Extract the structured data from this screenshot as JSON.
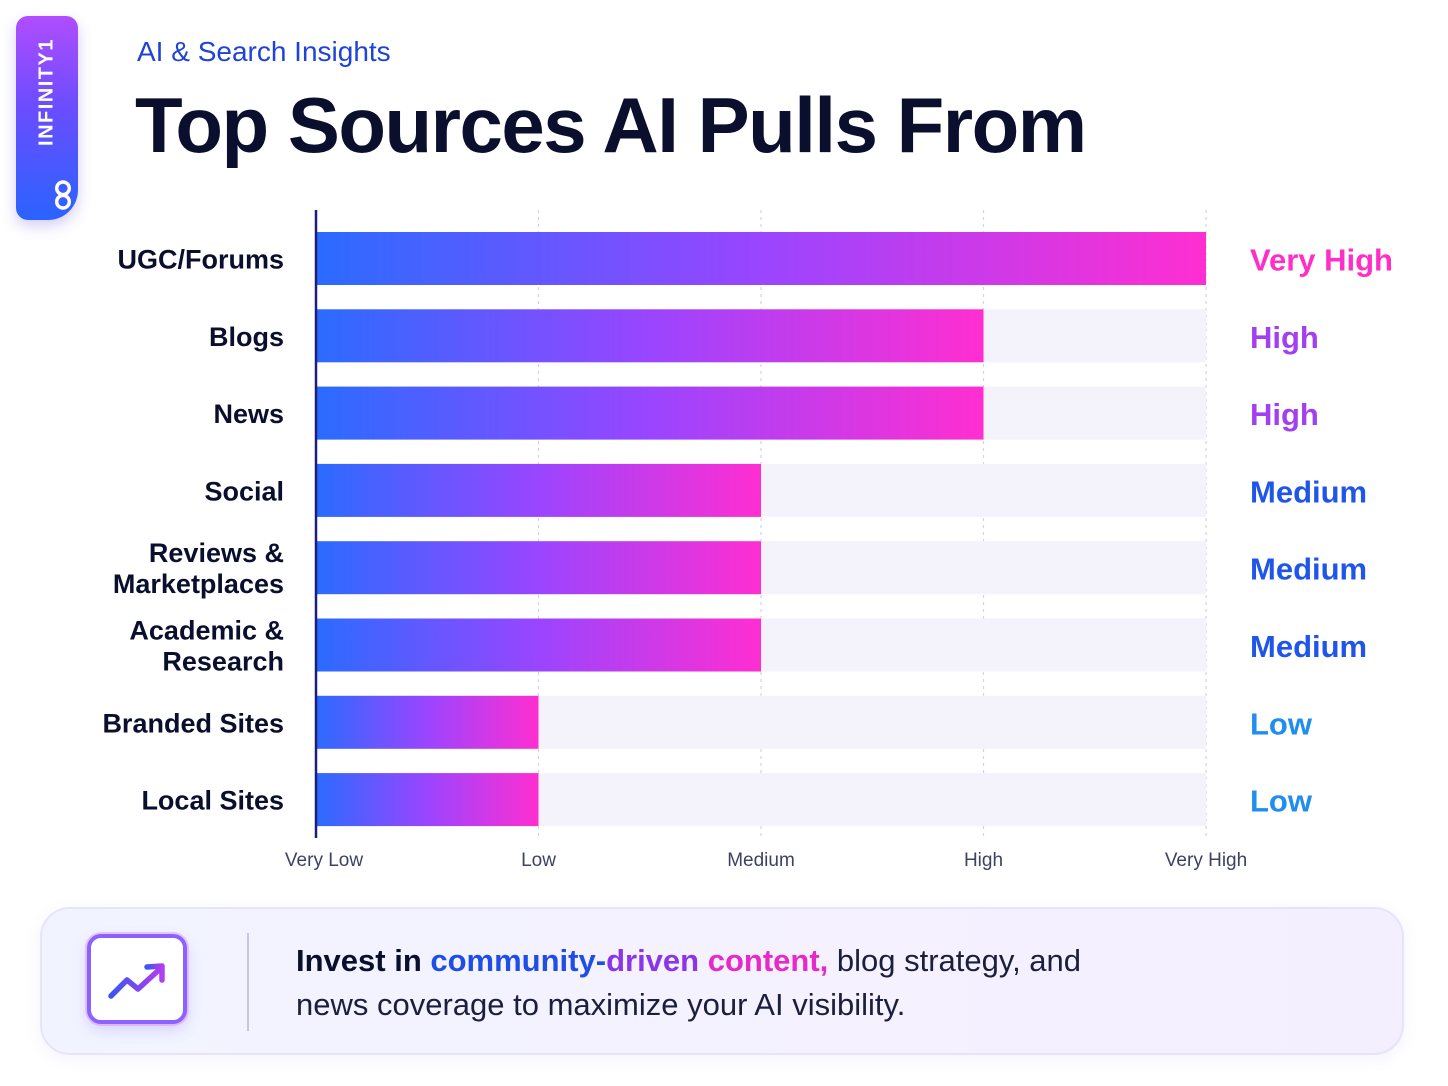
{
  "brand": {
    "name": "INFINITY1",
    "logo_icon": "infinity-icon"
  },
  "header": {
    "eyebrow": "AI & Search Insights",
    "title": "Top Sources AI Pulls From"
  },
  "colors": {
    "bar_start": "#2b6bff",
    "bar_mid": "#9a45ff",
    "bar_end": "#ff2ed1",
    "track": "#f4f2fb",
    "level_very_high": "#ff2ec8",
    "level_high": "#a23ff0",
    "level_medium": "#1f55e8",
    "level_low": "#1f8ef0"
  },
  "chart_data": {
    "type": "bar",
    "orientation": "horizontal",
    "title": "Top Sources AI Pulls From",
    "categories": [
      [
        "UGC/Forums"
      ],
      [
        "Blogs"
      ],
      [
        "News"
      ],
      [
        "Social"
      ],
      [
        "Reviews &",
        "Marketplaces"
      ],
      [
        "Academic &",
        "Research"
      ],
      [
        "Branded Sites"
      ],
      [
        "Local Sites"
      ]
    ],
    "values": [
      4,
      3,
      3,
      2,
      2,
      2,
      1,
      1
    ],
    "value_labels": [
      "Very High",
      "High",
      "High",
      "Medium",
      "Medium",
      "Medium",
      "Low",
      "Low"
    ],
    "xlim": [
      0,
      4
    ],
    "xticks": [
      0,
      1,
      2,
      3,
      4
    ],
    "xtick_labels": [
      "Very Low",
      "Low",
      "Medium",
      "High",
      "Very High"
    ],
    "xlabel": "",
    "ylabel": "",
    "grid": true,
    "legend": "none"
  },
  "callout": {
    "icon": "trending-up-icon",
    "lead": "Invest in ",
    "highlight_1": "community-",
    "highlight_2": "driven ",
    "highlight_3": "content,",
    "rest_line_1": " blog strategy, and",
    "line_2": "news coverage to maximize your AI visibility."
  }
}
